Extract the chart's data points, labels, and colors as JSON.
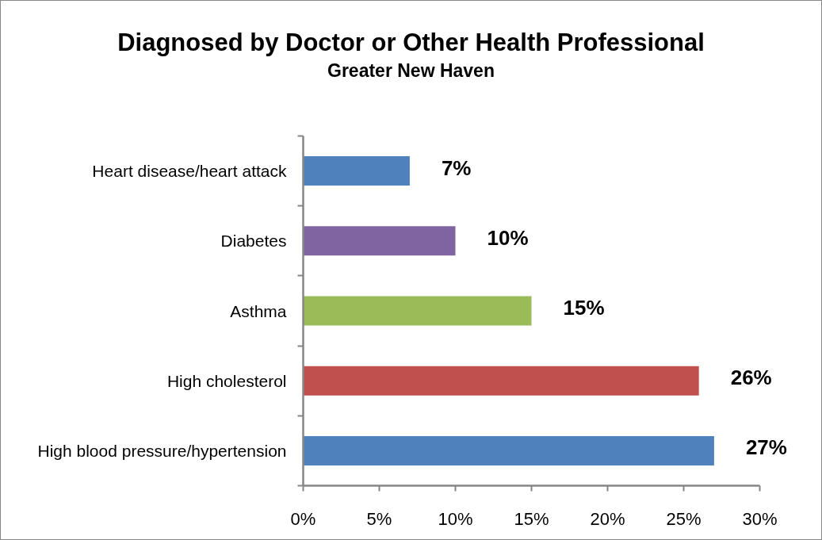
{
  "chart_data": {
    "type": "bar",
    "orientation": "horizontal",
    "title": "Diagnosed by Doctor or Other Health Professional",
    "subtitle": "Greater New Haven",
    "categories": [
      "Heart disease/heart attack",
      "Diabetes",
      "Asthma",
      "High cholesterol",
      "High blood pressure/hypertension"
    ],
    "values": [
      7,
      10,
      15,
      26,
      27
    ],
    "colors": [
      "#4f81bd",
      "#8064a2",
      "#9bbb59",
      "#c0504d",
      "#4f81bd"
    ],
    "value_labels": [
      "7%",
      "10%",
      "15%",
      "26%",
      "27%"
    ],
    "xlim": [
      0,
      30
    ],
    "xticks": [
      {
        "value": 0,
        "label": "0%"
      },
      {
        "value": 5,
        "label": "5%"
      },
      {
        "value": 10,
        "label": "10%"
      },
      {
        "value": 15,
        "label": "15%"
      },
      {
        "value": 20,
        "label": "20%"
      },
      {
        "value": 25,
        "label": "25%"
      },
      {
        "value": 30,
        "label": "30%"
      }
    ],
    "grid": false
  }
}
